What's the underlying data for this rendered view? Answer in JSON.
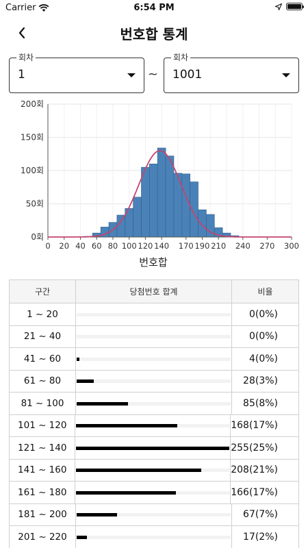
{
  "status": {
    "carrier": "Carrier",
    "time": "6:54 PM"
  },
  "header": {
    "title": "번호합 통계"
  },
  "filters": {
    "label_from": "회차",
    "from": "1",
    "separator": "~",
    "label_to": "회차",
    "to": "1001"
  },
  "colors": {
    "bar": "#4a82b8",
    "curve": "#c2466e",
    "grid": "#e6e6e6"
  },
  "chart_data": {
    "type": "bar",
    "x": [
      10,
      20,
      30,
      40,
      50,
      60,
      70,
      80,
      90,
      100,
      110,
      120,
      130,
      140,
      150,
      160,
      170,
      180,
      190,
      200,
      210,
      220,
      230,
      240,
      250,
      260,
      270,
      280,
      290
    ],
    "values": [
      0,
      0,
      0,
      0,
      1,
      6,
      15,
      22,
      33,
      43,
      60,
      105,
      110,
      134,
      122,
      96,
      95,
      83,
      41,
      34,
      14,
      6,
      2,
      0,
      0,
      0,
      0,
      0,
      0
    ],
    "bin_width": 10,
    "curve": {
      "type": "normal",
      "mean": 138,
      "peak": 130,
      "sd": 26
    },
    "xlim": [
      0,
      300
    ],
    "ylim": [
      0,
      200
    ],
    "x_ticks": [
      "0",
      "20",
      "40",
      "60",
      "80",
      "100",
      "120",
      "140",
      "170",
      "190",
      "210",
      "240",
      "270",
      "300"
    ],
    "x_tick_values": [
      0,
      20,
      40,
      60,
      80,
      100,
      120,
      140,
      170,
      190,
      210,
      240,
      270,
      300
    ],
    "y_ticks": [
      "0회",
      "50회",
      "100회",
      "150회",
      "200회"
    ],
    "y_tick_values": [
      0,
      50,
      100,
      150,
      200
    ],
    "xlabel": "번호합",
    "grid": true
  },
  "table": {
    "headers": {
      "range": "구간",
      "sum": "당첨번호 합계",
      "ratio": "비율"
    },
    "max_count": 255,
    "rows": [
      {
        "range": "1 ~ 20",
        "count": 0,
        "ratio": "0(0%)"
      },
      {
        "range": "21 ~ 40",
        "count": 0,
        "ratio": "0(0%)"
      },
      {
        "range": "41 ~ 60",
        "count": 4,
        "ratio": "4(0%)"
      },
      {
        "range": "61 ~ 80",
        "count": 28,
        "ratio": "28(3%)"
      },
      {
        "range": "81 ~ 100",
        "count": 85,
        "ratio": "85(8%)"
      },
      {
        "range": "101 ~ 120",
        "count": 168,
        "ratio": "168(17%)"
      },
      {
        "range": "121 ~ 140",
        "count": 255,
        "ratio": "255(25%)"
      },
      {
        "range": "141 ~ 160",
        "count": 208,
        "ratio": "208(21%)"
      },
      {
        "range": "161 ~ 180",
        "count": 166,
        "ratio": "166(17%)"
      },
      {
        "range": "181 ~ 200",
        "count": 67,
        "ratio": "67(7%)"
      },
      {
        "range": "201 ~ 220",
        "count": 17,
        "ratio": "17(2%)"
      }
    ]
  }
}
